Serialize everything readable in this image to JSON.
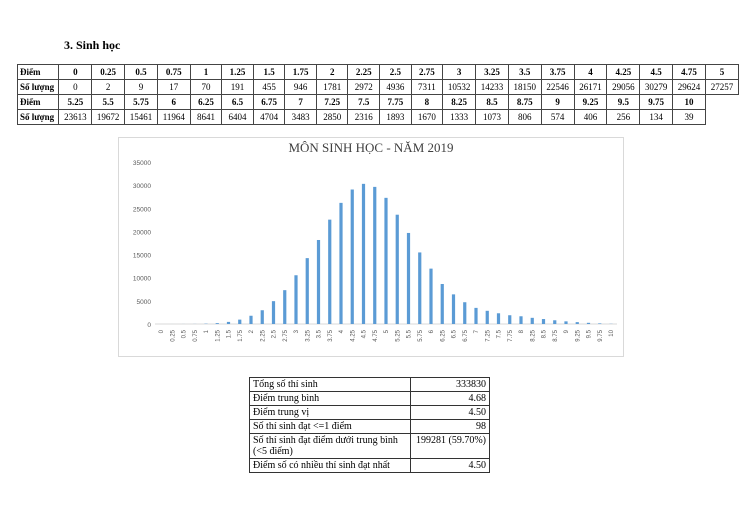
{
  "heading": "3.  Sinh học",
  "score_table": {
    "row_label_score": "Điểm",
    "row_label_count": "Số lượng",
    "scores1": [
      "0",
      "0.25",
      "0.5",
      "0.75",
      "1",
      "1.25",
      "1.5",
      "1.75",
      "2",
      "2.25",
      "2.5",
      "2.75",
      "3",
      "3.25",
      "3.5",
      "3.75",
      "4",
      "4.25",
      "4.5",
      "4.75",
      "5"
    ],
    "counts1": [
      "0",
      "2",
      "9",
      "17",
      "70",
      "191",
      "455",
      "946",
      "1781",
      "2972",
      "4936",
      "7311",
      "10532",
      "14233",
      "18150",
      "22546",
      "26171",
      "29056",
      "30279",
      "29624",
      "27257"
    ],
    "scores2": [
      "5.25",
      "5.5",
      "5.75",
      "6",
      "6.25",
      "6.5",
      "6.75",
      "7",
      "7.25",
      "7.5",
      "7.75",
      "8",
      "8.25",
      "8.5",
      "8.75",
      "9",
      "9.25",
      "9.5",
      "9.75",
      "10"
    ],
    "counts2": [
      "23613",
      "19672",
      "15461",
      "11964",
      "8641",
      "6404",
      "4704",
      "3483",
      "2850",
      "2316",
      "1893",
      "1670",
      "1333",
      "1073",
      "806",
      "574",
      "406",
      "256",
      "134",
      "39"
    ]
  },
  "chart_data": {
    "type": "bar",
    "title": "MÔN SINH HỌC - NĂM 2019",
    "categories": [
      "0",
      "0.25",
      "0.5",
      "0.75",
      "1",
      "1.25",
      "1.5",
      "1.75",
      "2",
      "2.25",
      "2.5",
      "2.75",
      "3",
      "3.25",
      "3.5",
      "3.75",
      "4",
      "4.25",
      "4.5",
      "4.75",
      "5",
      "5.25",
      "5.5",
      "5.75",
      "6",
      "6.25",
      "6.5",
      "6.75",
      "7",
      "7.25",
      "7.5",
      "7.75",
      "8",
      "8.25",
      "8.5",
      "8.75",
      "9",
      "9.25",
      "9.5",
      "9.75",
      "10"
    ],
    "values": [
      0,
      2,
      9,
      17,
      70,
      191,
      455,
      946,
      1781,
      2972,
      4936,
      7311,
      10532,
      14233,
      18150,
      22546,
      26171,
      29056,
      30279,
      29624,
      27257,
      23613,
      19672,
      15461,
      11964,
      8641,
      6404,
      4704,
      3483,
      2850,
      2316,
      1893,
      1670,
      1333,
      1073,
      806,
      574,
      406,
      256,
      134,
      39
    ],
    "yticks": [
      "0",
      "5000",
      "10000",
      "15000",
      "20000",
      "25000",
      "30000",
      "35000"
    ],
    "ylim": [
      0,
      35000
    ],
    "xlabel": "",
    "ylabel": "",
    "color": "#5b9bd5"
  },
  "stats": [
    {
      "label": "Tổng số thí sinh",
      "value": "333830"
    },
    {
      "label": "Điểm trung bình",
      "value": "4.68"
    },
    {
      "label": "Điểm trung vị",
      "value": "4.50"
    },
    {
      "label": "Số thí sinh đạt <=1 điểm",
      "value": "98"
    },
    {
      "label": "Số thí sinh đạt điểm dưới trung bình (<5 điểm)",
      "value": "199281 (59.70%)"
    },
    {
      "label": "Điểm số có nhiều thí sinh đạt nhất",
      "value": "4.50"
    }
  ]
}
